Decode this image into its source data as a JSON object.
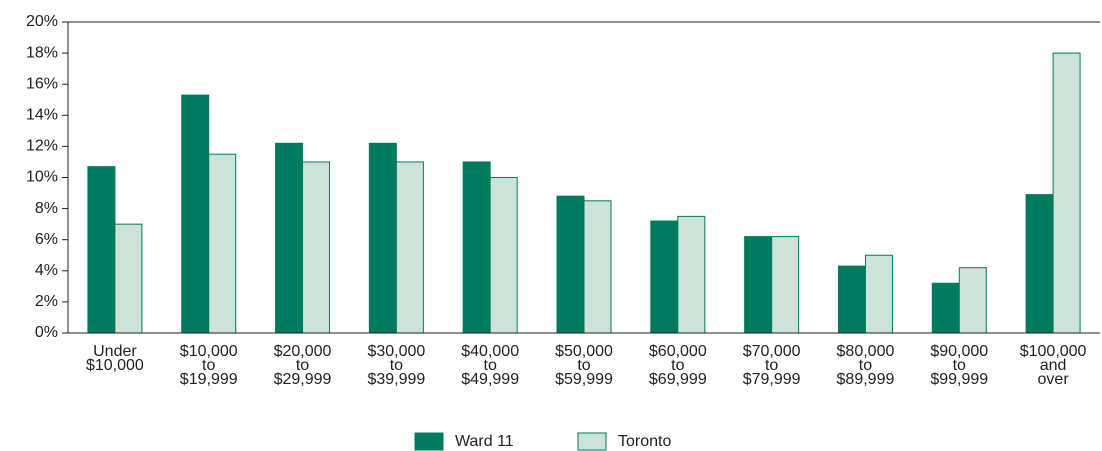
{
  "chart_data": {
    "type": "bar",
    "categories": [
      [
        "Under",
        "$10,000"
      ],
      [
        "$10,000",
        "to",
        "$19,999"
      ],
      [
        "$20,000",
        "to",
        "$29,999"
      ],
      [
        "$30,000",
        "to",
        "$39,999"
      ],
      [
        "$40,000",
        "to",
        "$49,999"
      ],
      [
        "$50,000",
        "to",
        "$59,999"
      ],
      [
        "$60,000",
        "to",
        "$69,999"
      ],
      [
        "$70,000",
        "to",
        "$79,999"
      ],
      [
        "$80,000",
        "to",
        "$89,999"
      ],
      [
        "$90,000",
        "to",
        "$99,999"
      ],
      [
        "$100,000",
        "and",
        "over"
      ]
    ],
    "series": [
      {
        "name": "Ward 11",
        "color": "#007b5f",
        "values": [
          10.7,
          15.3,
          12.2,
          12.2,
          11.0,
          8.8,
          7.2,
          6.2,
          4.3,
          3.2,
          8.9
        ]
      },
      {
        "name": "Toronto",
        "color": "#cde3da",
        "values": [
          7.0,
          11.5,
          11.0,
          11.0,
          10.0,
          8.5,
          7.5,
          6.2,
          5.0,
          4.2,
          18.0
        ]
      }
    ],
    "ylim": [
      0,
      20
    ],
    "yticks": [
      {
        "value": 0,
        "label": "0%"
      },
      {
        "value": 2,
        "label": "2%"
      },
      {
        "value": 4,
        "label": "4%"
      },
      {
        "value": 6,
        "label": "6%"
      },
      {
        "value": 8,
        "label": "8%"
      },
      {
        "value": 10,
        "label": "10%"
      },
      {
        "value": 12,
        "label": "12%"
      },
      {
        "value": 14,
        "label": "14%"
      },
      {
        "value": 16,
        "label": "16%"
      },
      {
        "value": 18,
        "label": "18%"
      },
      {
        "value": 20,
        "label": "20%"
      }
    ],
    "legend": "bottom"
  }
}
